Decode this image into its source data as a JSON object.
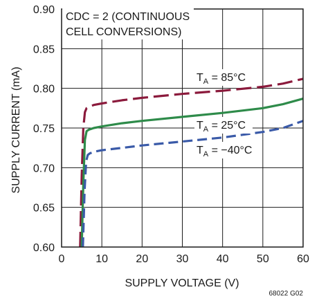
{
  "chart_data": {
    "type": "line",
    "xlabel": "SUPPLY VOLTAGE (V)",
    "ylabel": "SUPPLY CURRENT (mA)",
    "xlim": [
      0,
      60
    ],
    "ylim": [
      0.6,
      0.9
    ],
    "x_ticks": [
      "0",
      "10",
      "20",
      "30",
      "40",
      "50",
      "60"
    ],
    "y_ticks": [
      "0.60",
      "0.65",
      "0.70",
      "0.75",
      "0.80",
      "0.85",
      "0.90"
    ],
    "grid": true,
    "annotation": [
      "CDC = 2 (CONTINUOUS",
      "CELL CONVERSIONS)"
    ],
    "figure_id": "68022 G02",
    "series": [
      {
        "name": "T_A = 85°C",
        "label_main": "T",
        "label_sub": "A",
        "label_rest": " = 85°C",
        "color": "#8b1a3c",
        "dash": "long-dash",
        "x": [
          4.6,
          5.0,
          5.4,
          5.8,
          6.2,
          7,
          8,
          10,
          15,
          20,
          30,
          40,
          50,
          55,
          60
        ],
        "y": [
          0.6,
          0.69,
          0.75,
          0.77,
          0.775,
          0.777,
          0.779,
          0.781,
          0.785,
          0.788,
          0.793,
          0.797,
          0.802,
          0.806,
          0.812
        ]
      },
      {
        "name": "T_A = 25°C",
        "label_main": "T",
        "label_sub": "A",
        "label_rest": " = 25°C",
        "color": "#2e8b4a",
        "dash": "solid",
        "x": [
          5.0,
          5.4,
          5.8,
          6.2,
          6.8,
          8,
          10,
          15,
          20,
          30,
          40,
          50,
          55,
          60
        ],
        "y": [
          0.6,
          0.68,
          0.735,
          0.746,
          0.748,
          0.75,
          0.752,
          0.756,
          0.759,
          0.764,
          0.769,
          0.775,
          0.78,
          0.787
        ]
      },
      {
        "name": "T_A = −40°C",
        "label_main": "T",
        "label_sub": "A",
        "label_rest": " = −40°C",
        "color": "#3a5aa8",
        "dash": "dash",
        "x": [
          5.3,
          5.7,
          6.1,
          6.5,
          7,
          8,
          10,
          15,
          20,
          30,
          40,
          50,
          55,
          60
        ],
        "y": [
          0.6,
          0.67,
          0.708,
          0.716,
          0.718,
          0.72,
          0.722,
          0.725,
          0.728,
          0.733,
          0.738,
          0.745,
          0.75,
          0.759
        ]
      }
    ]
  }
}
